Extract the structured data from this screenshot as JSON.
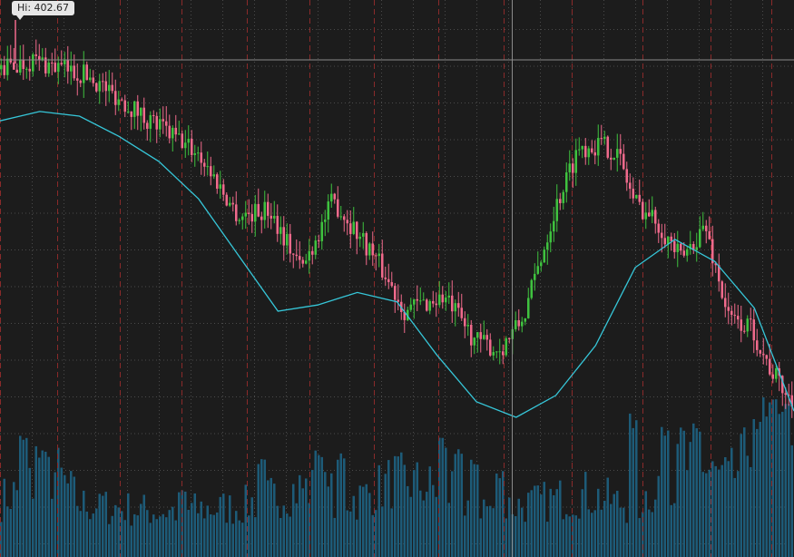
{
  "hi_label": "Hi: 402.67",
  "chart_data": {
    "type": "candlestick",
    "title": "",
    "high_value": 402.67,
    "colors": {
      "background": "#1c1c1c",
      "up": "#3fc23f",
      "down": "#f06a8c",
      "moving_average": "#36c6d8",
      "volume": "#1d5b78",
      "grid": "#4a4a4a",
      "period_line": "#8a2a2a",
      "crosshair": "#8a8a8a"
    },
    "grid": true,
    "moving_average": [
      0.95,
      0.98,
      0.965,
      0.9,
      0.82,
      0.7,
      0.52,
      0.34,
      0.36,
      0.4,
      0.37,
      0.2,
      0.05,
      0.0,
      0.07,
      0.23,
      0.48,
      0.57,
      0.5,
      0.35,
      0.02
    ],
    "candle_path": [
      [
        0,
        0.97
      ],
      [
        4,
        1.0
      ],
      [
        11,
        0.95
      ],
      [
        18,
        0.82
      ],
      [
        25,
        0.7
      ],
      [
        30,
        0.5
      ],
      [
        34,
        0.52
      ],
      [
        38,
        0.33
      ],
      [
        42,
        0.55
      ],
      [
        47,
        0.38
      ],
      [
        51,
        0.2
      ],
      [
        56,
        0.24
      ],
      [
        60,
        0.1
      ],
      [
        63,
        0.07
      ],
      [
        66,
        0.17
      ],
      [
        70,
        0.52
      ],
      [
        73,
        0.72
      ],
      [
        76,
        0.73
      ],
      [
        78,
        0.7
      ],
      [
        80,
        0.55
      ],
      [
        83,
        0.48
      ],
      [
        86,
        0.36
      ],
      [
        89,
        0.47
      ],
      [
        92,
        0.17
      ],
      [
        95,
        0.14
      ],
      [
        97,
        0.02
      ],
      [
        100,
        -0.1
      ]
    ],
    "volume_profile": [
      [
        0,
        0.38
      ],
      [
        7,
        0.56
      ],
      [
        10,
        0.35
      ],
      [
        20,
        0.3
      ],
      [
        30,
        0.33
      ],
      [
        38,
        0.46
      ],
      [
        45,
        0.38
      ],
      [
        50,
        0.52
      ],
      [
        55,
        0.45
      ],
      [
        62,
        0.32
      ],
      [
        68,
        0.36
      ],
      [
        74,
        0.42
      ],
      [
        80,
        0.33
      ],
      [
        86,
        0.62
      ],
      [
        92,
        0.5
      ],
      [
        97,
        0.82
      ],
      [
        100,
        0.9
      ]
    ],
    "volume_spikes": [
      [
        3,
        0.75
      ],
      [
        5,
        0.69
      ],
      [
        13,
        0.38
      ],
      [
        23,
        0.42
      ],
      [
        33,
        0.59
      ],
      [
        40,
        0.7
      ],
      [
        43,
        0.66
      ],
      [
        50,
        0.6
      ],
      [
        56,
        0.74
      ],
      [
        58,
        0.65
      ],
      [
        60,
        0.6
      ],
      [
        63,
        0.55
      ],
      [
        80,
        0.88
      ],
      [
        84,
        0.84
      ],
      [
        86,
        0.78
      ],
      [
        88,
        0.82
      ],
      [
        94,
        0.7
      ],
      [
        97,
        0.95
      ],
      [
        99,
        0.93
      ]
    ]
  }
}
